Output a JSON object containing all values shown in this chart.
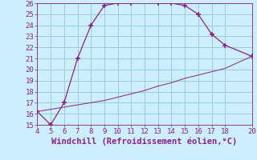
{
  "xlabel": "Windchill (Refroidissement éolien,°C)",
  "line1_x": [
    4,
    5,
    6,
    7,
    8,
    9,
    10,
    11,
    12,
    13,
    14,
    15,
    16,
    17,
    18,
    20
  ],
  "line1_y": [
    16.2,
    15.0,
    17.0,
    21.0,
    24.0,
    25.8,
    26.0,
    26.0,
    26.2,
    26.0,
    26.0,
    25.8,
    25.0,
    23.2,
    22.2,
    21.2
  ],
  "line2_x": [
    4,
    5,
    6,
    7,
    8,
    9,
    10,
    11,
    12,
    13,
    14,
    15,
    16,
    17,
    18,
    20
  ],
  "line2_y": [
    16.2,
    16.4,
    16.6,
    16.8,
    17.0,
    17.2,
    17.5,
    17.8,
    18.1,
    18.5,
    18.8,
    19.2,
    19.5,
    19.8,
    20.1,
    21.2
  ],
  "line_color": "#882288",
  "bg_color": "#cceeff",
  "grid_color": "#99cccc",
  "text_color": "#882288",
  "xlim": [
    4,
    20
  ],
  "ylim": [
    15,
    26
  ],
  "xticks": [
    4,
    5,
    6,
    7,
    8,
    9,
    10,
    11,
    12,
    13,
    14,
    15,
    16,
    17,
    18,
    20
  ],
  "yticks": [
    15,
    16,
    17,
    18,
    19,
    20,
    21,
    22,
    23,
    24,
    25,
    26
  ],
  "xlabel_fontsize": 7.5,
  "tick_fontsize": 6.5
}
